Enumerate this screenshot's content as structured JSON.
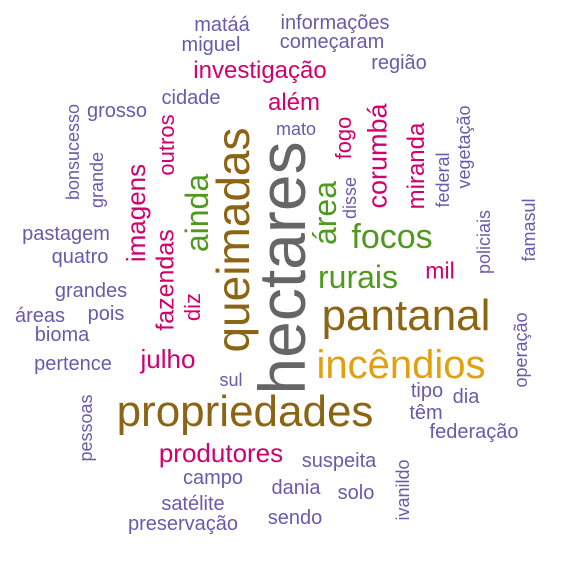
{
  "palette": {
    "gray": "#666666",
    "brown": "#8B6414",
    "gold": "#E0A010",
    "green": "#4E9A1E",
    "magenta": "#D0006E",
    "purple": "#6A5AAB"
  },
  "words": [
    {
      "text": "hectares",
      "color": "gray"
    },
    {
      "text": "pantanal",
      "color": "brown"
    },
    {
      "text": "propriedades",
      "color": "brown"
    },
    {
      "text": "queimadas",
      "color": "brown"
    },
    {
      "text": "incêndios",
      "color": "gold"
    },
    {
      "text": "focos",
      "color": "green"
    },
    {
      "text": "rurais",
      "color": "green"
    },
    {
      "text": "área",
      "color": "green"
    },
    {
      "text": "ainda",
      "color": "green"
    },
    {
      "text": "corumbá",
      "color": "magenta"
    },
    {
      "text": "investigação",
      "color": "magenta"
    },
    {
      "text": "imagens",
      "color": "magenta"
    },
    {
      "text": "fazendas",
      "color": "magenta"
    },
    {
      "text": "julho",
      "color": "magenta"
    },
    {
      "text": "produtores",
      "color": "magenta"
    },
    {
      "text": "miranda",
      "color": "magenta"
    },
    {
      "text": "mil",
      "color": "magenta"
    },
    {
      "text": "fogo",
      "color": "magenta"
    },
    {
      "text": "além",
      "color": "magenta"
    },
    {
      "text": "outros",
      "color": "magenta"
    },
    {
      "text": "diz",
      "color": "magenta"
    },
    {
      "text": "matáá",
      "color": "purple"
    },
    {
      "text": "informações",
      "color": "purple"
    },
    {
      "text": "miguel",
      "color": "purple"
    },
    {
      "text": "começaram",
      "color": "purple"
    },
    {
      "text": "região",
      "color": "purple"
    },
    {
      "text": "cidade",
      "color": "purple"
    },
    {
      "text": "grosso",
      "color": "purple"
    },
    {
      "text": "bonsucesso",
      "color": "purple"
    },
    {
      "text": "grande",
      "color": "purple"
    },
    {
      "text": "mato",
      "color": "purple"
    },
    {
      "text": "vegetação",
      "color": "purple"
    },
    {
      "text": "federal",
      "color": "purple"
    },
    {
      "text": "disse",
      "color": "purple"
    },
    {
      "text": "policiais",
      "color": "purple"
    },
    {
      "text": "famasul",
      "color": "purple"
    },
    {
      "text": "pastagem",
      "color": "purple"
    },
    {
      "text": "quatro",
      "color": "purple"
    },
    {
      "text": "grandes",
      "color": "purple"
    },
    {
      "text": "áreas",
      "color": "purple"
    },
    {
      "text": "pois",
      "color": "purple"
    },
    {
      "text": "bioma",
      "color": "purple"
    },
    {
      "text": "pertence",
      "color": "purple"
    },
    {
      "text": "operação",
      "color": "purple"
    },
    {
      "text": "sul",
      "color": "purple"
    },
    {
      "text": "tipo",
      "color": "purple"
    },
    {
      "text": "dia",
      "color": "purple"
    },
    {
      "text": "têm",
      "color": "purple"
    },
    {
      "text": "pessoas",
      "color": "purple"
    },
    {
      "text": "federação",
      "color": "purple"
    },
    {
      "text": "suspeita",
      "color": "purple"
    },
    {
      "text": "campo",
      "color": "purple"
    },
    {
      "text": "dania",
      "color": "purple"
    },
    {
      "text": "solo",
      "color": "purple"
    },
    {
      "text": "ivanildo",
      "color": "purple"
    },
    {
      "text": "satélite",
      "color": "purple"
    },
    {
      "text": "sendo",
      "color": "purple"
    },
    {
      "text": "preservação",
      "color": "purple"
    }
  ]
}
